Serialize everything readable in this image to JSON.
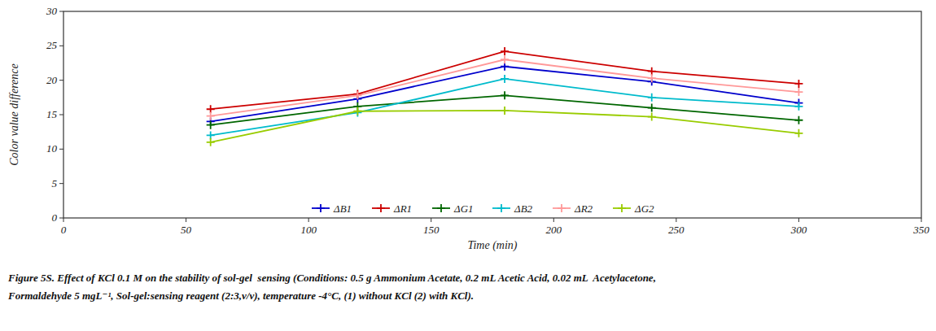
{
  "chart_data": {
    "type": "line",
    "x": [
      60,
      120,
      180,
      240,
      300
    ],
    "series": [
      {
        "name": "ΔB1",
        "color": "#0000cc",
        "marker": "+",
        "values": [
          14.0,
          17.3,
          22.0,
          19.8,
          16.7
        ]
      },
      {
        "name": "ΔR1",
        "color": "#cc0000",
        "marker": "+",
        "values": [
          15.8,
          18.0,
          24.2,
          21.3,
          19.5
        ]
      },
      {
        "name": "ΔG1",
        "color": "#006600",
        "marker": "+",
        "values": [
          13.5,
          16.2,
          17.8,
          16.0,
          14.2
        ]
      },
      {
        "name": "ΔB2",
        "color": "#00bbcc",
        "marker": "+",
        "values": [
          12.0,
          15.3,
          20.2,
          17.5,
          16.2
        ]
      },
      {
        "name": "ΔR2",
        "color": "#ff9999",
        "marker": "+",
        "values": [
          14.8,
          17.8,
          23.0,
          20.3,
          18.3
        ]
      },
      {
        "name": "ΔG2",
        "color": "#99cc00",
        "marker": "+",
        "values": [
          11.0,
          15.5,
          15.6,
          14.7,
          12.3
        ]
      }
    ],
    "x_label": "Time (min)",
    "y_label": "Color value difference",
    "xlim": [
      0,
      350
    ],
    "ylim": [
      0,
      30
    ],
    "xticks": [
      0,
      50,
      100,
      150,
      200,
      250,
      300,
      350
    ],
    "yticks": [
      0,
      5,
      10,
      15,
      20,
      25,
      30
    ],
    "grid": false,
    "legend": "bottom",
    "annotations": [
      "Figure 5S.",
      " Effect of KCl 0.1 M on the stability of sol-gel  sensing (Conditions: 0.5 g Ammonium Acetate, 0.2 mL Acetic Acid, 0.02 mL  Acetylacetone,",
      "Formaldehyde 5 mgL⁻¹, Sol-gel:sensing reagent (2:3,v/v), temperature -4°C, (1) without KCl (2) with KCl)."
    ]
  }
}
